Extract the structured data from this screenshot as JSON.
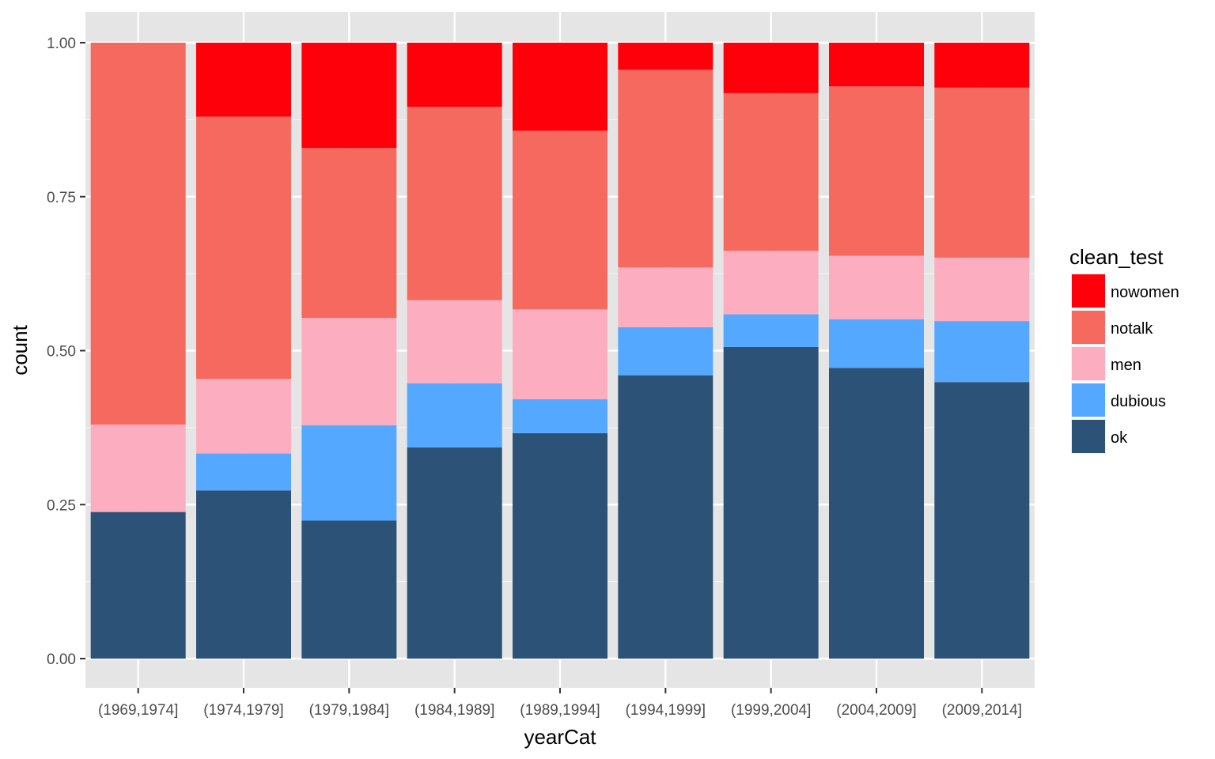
{
  "chart_data": {
    "type": "bar",
    "stacked": true,
    "position": "fill",
    "title": "",
    "xlabel": "yearCat",
    "ylabel": "count",
    "ylim": [
      0,
      1
    ],
    "yticks": [
      0.0,
      0.25,
      0.5,
      0.75,
      1.0
    ],
    "ytick_labels": [
      "0.00",
      "0.25",
      "0.50",
      "0.75",
      "1.00"
    ],
    "categories": [
      "(1969,1974]",
      "(1974,1979]",
      "(1979,1984]",
      "(1984,1989]",
      "(1989,1994]",
      "(1994,1999]",
      "(1999,2004]",
      "(2004,2009]",
      "(2009,2014]"
    ],
    "legend": {
      "title": "clean_test",
      "placement": "right",
      "entries": [
        "nowomen",
        "notalk",
        "men",
        "dubious",
        "ok"
      ]
    },
    "series": [
      {
        "name": "ok",
        "color": "#2c5278",
        "values": [
          0.238,
          0.273,
          0.224,
          0.343,
          0.366,
          0.46,
          0.506,
          0.472,
          0.449
        ]
      },
      {
        "name": "dubious",
        "color": "#55a8ff",
        "values": [
          0.0,
          0.06,
          0.155,
          0.104,
          0.055,
          0.078,
          0.053,
          0.079,
          0.099
        ]
      },
      {
        "name": "men",
        "color": "#fcaec0",
        "values": [
          0.142,
          0.121,
          0.174,
          0.135,
          0.146,
          0.097,
          0.103,
          0.103,
          0.103
        ]
      },
      {
        "name": "notalk",
        "color": "#f6695f",
        "values": [
          0.62,
          0.426,
          0.276,
          0.314,
          0.29,
          0.321,
          0.256,
          0.275,
          0.276
        ]
      },
      {
        "name": "nowomen",
        "color": "#fd0009",
        "values": [
          0.0,
          0.12,
          0.171,
          0.104,
          0.143,
          0.044,
          0.082,
          0.071,
          0.073
        ]
      }
    ],
    "grid": true,
    "panel_background": "#e5e5e5",
    "grid_color": "#ffffff"
  }
}
